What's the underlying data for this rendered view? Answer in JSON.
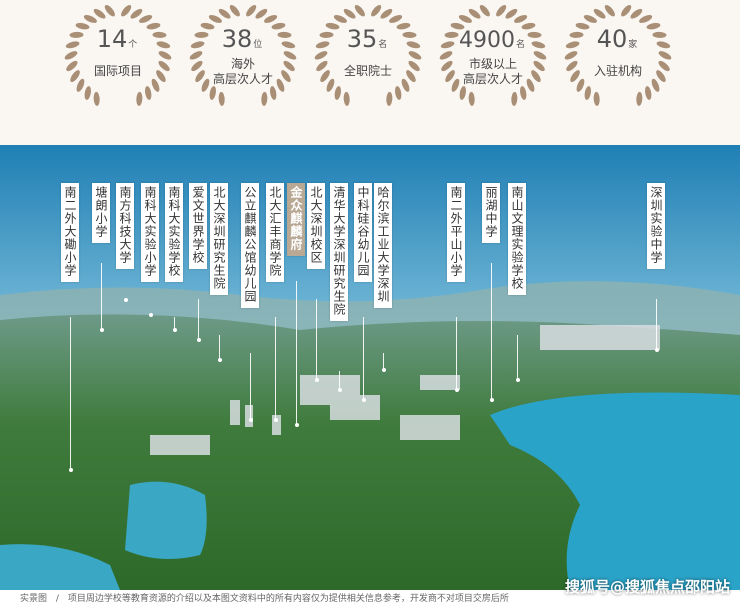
{
  "stats": [
    {
      "number": "14",
      "unit": "个",
      "label": [
        "国际项目"
      ]
    },
    {
      "number": "38",
      "unit": "位",
      "label": [
        "海外",
        "高层次人才"
      ]
    },
    {
      "number": "35",
      "unit": "名",
      "label": [
        "全职院士"
      ]
    },
    {
      "number": "4900",
      "unit": "名",
      "label": [
        "市级以上",
        "高层次人才"
      ]
    },
    {
      "number": "40",
      "unit": "家",
      "label": [
        "入驻机构"
      ]
    }
  ],
  "tags": [
    "南二外大磡小学",
    "塘朗小学",
    "南方科技大学",
    "南科大实验小学",
    "南科大实验学校",
    "爱文世界学校",
    "北大深圳研究生院",
    "公立麒麟公馆幼儿园",
    "北大汇丰商学院",
    "金众麒麟府",
    "北大深圳校区",
    "清华大学深圳研究生院",
    "中科硅谷幼儿园",
    "哈尔滨工业大学深圳",
    "南二外平山小学",
    "丽湖中学",
    "南山文理实验学校",
    "深圳实验中学"
  ],
  "highlight_tag": 9,
  "footer": {
    "label": "实景图",
    "separator": "/",
    "note": "项目周边学校等教育资源的介绍以及本图文资料中的所有内容仅为提供相关信息参考，开发商不对项目交房后所"
  },
  "watermark": "搜狐号@搜狐焦点邵阳站"
}
